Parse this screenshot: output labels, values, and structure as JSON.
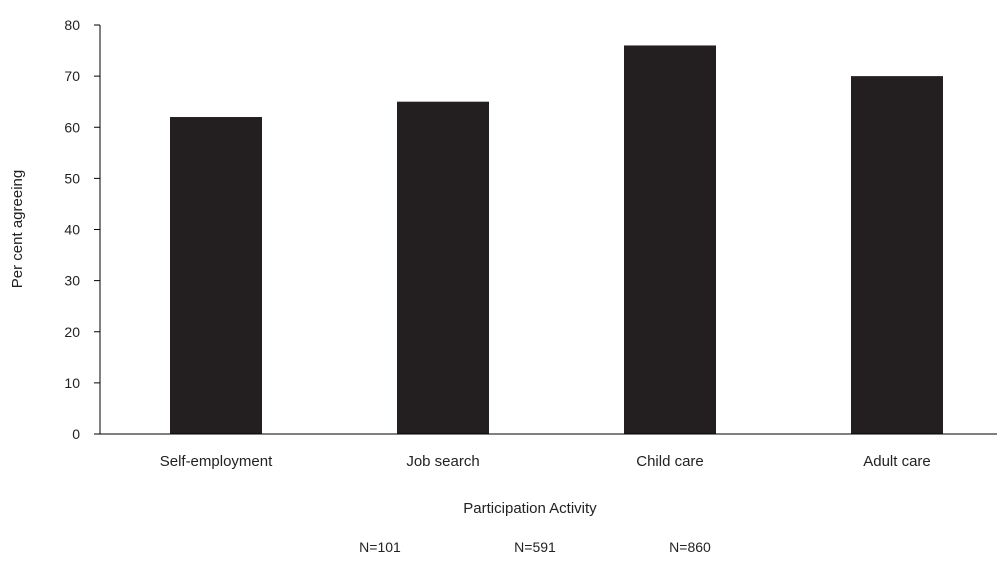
{
  "chart_data": {
    "type": "bar",
    "title": "",
    "xlabel": "Participation Activity",
    "ylabel": "Per cent agreeing",
    "ylim": [
      0,
      80
    ],
    "yticks": [
      0,
      10,
      20,
      30,
      40,
      50,
      60,
      70,
      80
    ],
    "categories": [
      "Self-employment",
      "Job search",
      "Child care",
      "Adult care"
    ],
    "values": [
      62,
      65,
      76,
      70
    ],
    "bar_color": "#231f20",
    "grid": false,
    "legend": "none",
    "footnotes": [
      "N=101",
      "N=591",
      "N=860"
    ]
  }
}
